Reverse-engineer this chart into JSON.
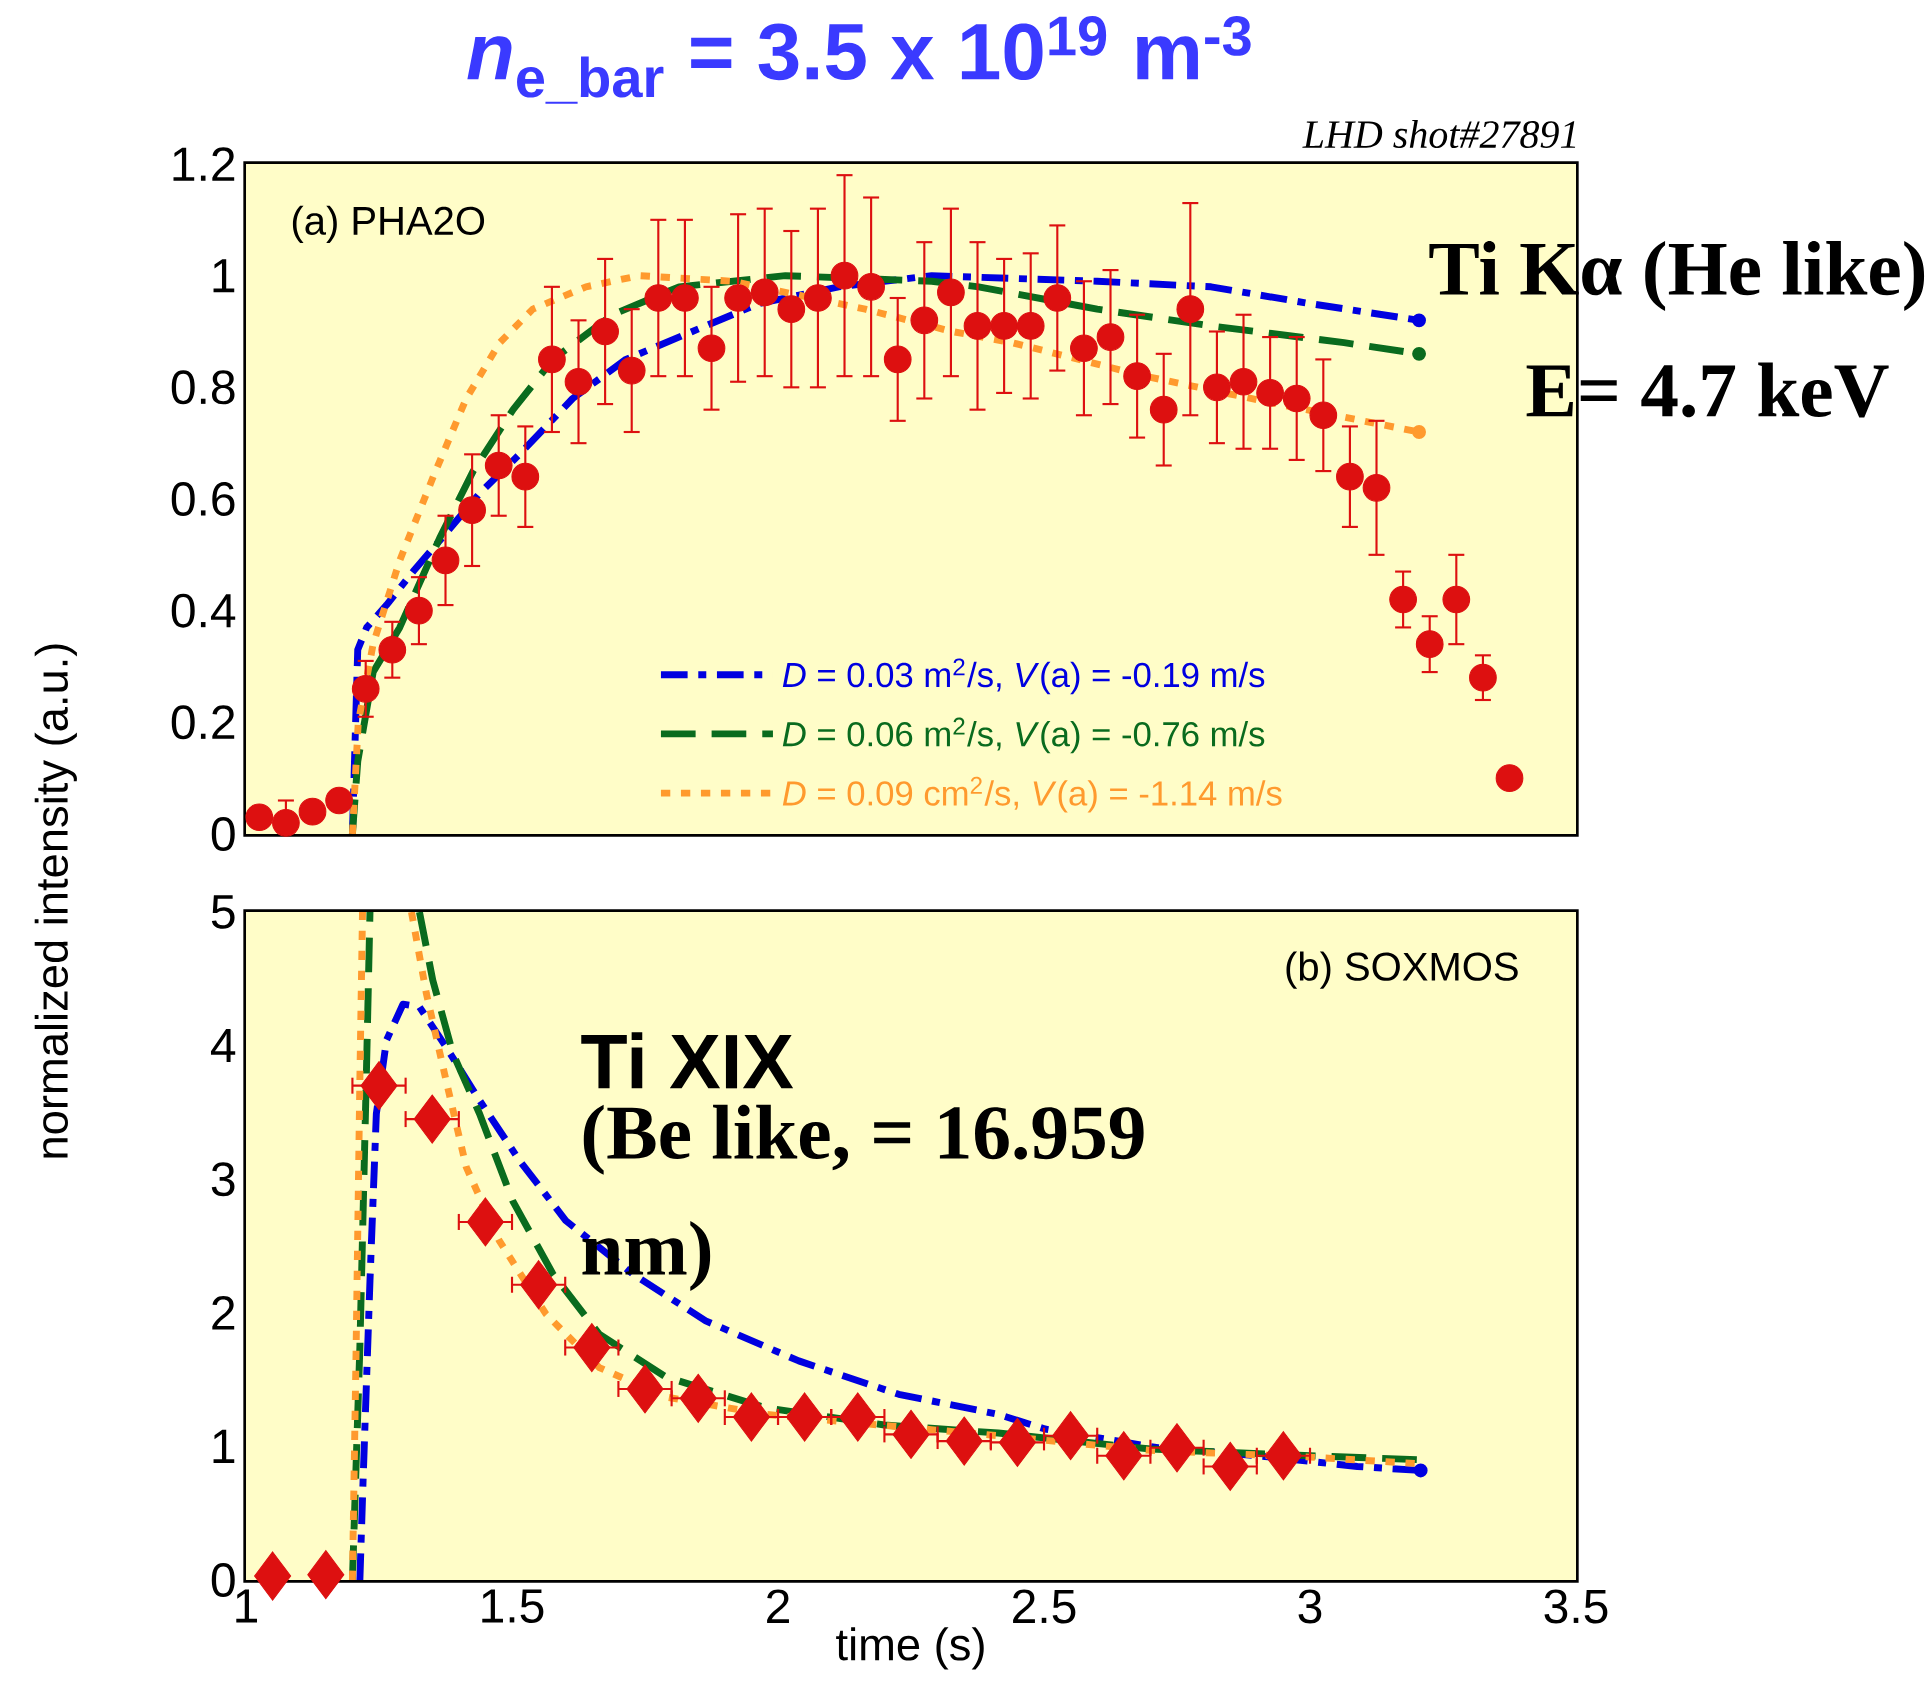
{
  "chart_data": [
    {
      "type": "line",
      "title": "*n*$_{e_bar}$ = 3.5 x 10$^{19}$ m$^{-3}$",
      "subtitle": "LHD shot#27891",
      "ylabel": "normalized intensity (a.u.)",
      "annotations": [
        "(a) PHA2O",
        "Ti Kα (He like)",
        "E= 4.7 keV"
      ],
      "xlim": [
        1,
        3.5
      ],
      "xticks": [
        1,
        1.5,
        2,
        2.5,
        3,
        3.5
      ],
      "ylim": [
        0,
        1.2
      ],
      "yticks": [
        0,
        0.2,
        0.4,
        0.6,
        0.8,
        1,
        1.2
      ],
      "tick_labels": "y",
      "legend": "bottom right",
      "series": [
        {
          "name": "*D* = 0.03 m$^{2}$/s, *V*(a) = -0.19 m/s",
          "line_style": "dashdot",
          "color": "#0000e0",
          "x": [
            1.2,
            1.21,
            1.227,
            1.264,
            1.314,
            1.377,
            1.439,
            1.514,
            1.614,
            1.714,
            1.839,
            1.964,
            2.114,
            2.289,
            2.6,
            2.814,
            3.0,
            3.205
          ],
          "values": [
            0,
            0.33,
            0.37,
            0.41,
            0.47,
            0.54,
            0.61,
            0.68,
            0.78,
            0.85,
            0.9,
            0.95,
            0.98,
            1.0,
            0.99,
            0.98,
            0.95,
            0.92
          ]
        },
        {
          "name": "*D* = 0.06 m$^{2}$/s, *V*(a) = -0.76 m/s",
          "line_style": "dashed",
          "color": "#0a6b1e",
          "x": [
            1.2,
            1.21,
            1.239,
            1.289,
            1.364,
            1.427,
            1.502,
            1.577,
            1.689,
            1.814,
            2.014,
            2.289,
            2.377,
            2.6,
            2.814,
            3.064,
            3.205
          ],
          "values": [
            0,
            0.13,
            0.29,
            0.37,
            0.53,
            0.65,
            0.76,
            0.85,
            0.93,
            0.98,
            1.0,
            0.99,
            0.98,
            0.94,
            0.91,
            0.88,
            0.86
          ]
        },
        {
          "name": "*D* = 0.09 cm$^{2}$/s, *V*(a) = -1.14 m/s",
          "line_style": "dotted",
          "color": "#ff9a2e",
          "x": [
            1.2,
            1.211,
            1.239,
            1.289,
            1.352,
            1.414,
            1.477,
            1.539,
            1.639,
            1.739,
            1.914,
            2.164,
            2.327,
            2.44,
            2.69,
            2.94,
            3.205
          ],
          "values": [
            0,
            0.2,
            0.34,
            0.49,
            0.64,
            0.78,
            0.88,
            0.94,
            0.98,
            1.0,
            0.99,
            0.94,
            0.9,
            0.88,
            0.82,
            0.77,
            0.72
          ]
        },
        {
          "type": "scatter",
          "marker": "circle",
          "color": "#dd1010",
          "x": [
            1.025,
            1.075,
            1.125,
            1.175,
            1.225,
            1.275,
            1.325,
            1.375,
            1.425,
            1.475,
            1.525,
            1.575,
            1.625,
            1.675,
            1.725,
            1.775,
            1.825,
            1.875,
            1.925,
            1.975,
            2.025,
            2.075,
            2.125,
            2.175,
            2.225,
            2.275,
            2.325,
            2.375,
            2.425,
            2.475,
            2.525,
            2.575,
            2.625,
            2.675,
            2.725,
            2.775,
            2.825,
            2.875,
            2.925,
            2.975,
            3.025,
            3.075,
            3.125,
            3.175,
            3.225,
            3.275,
            3.325,
            3.375
          ],
          "values": [
            0.03,
            0.02,
            0.04,
            0.06,
            0.26,
            0.33,
            0.4,
            0.49,
            0.58,
            0.66,
            0.64,
            0.85,
            0.81,
            0.9,
            0.83,
            0.96,
            0.96,
            0.87,
            0.96,
            0.97,
            0.94,
            0.96,
            1.0,
            0.98,
            0.85,
            0.92,
            0.97,
            0.91,
            0.91,
            0.91,
            0.96,
            0.87,
            0.89,
            0.82,
            0.76,
            0.94,
            0.8,
            0.81,
            0.79,
            0.78,
            0.75,
            0.64,
            0.62,
            0.42,
            0.34,
            0.42,
            0.28,
            0.1
          ],
          "errors": [
            null,
            0.04,
            null,
            null,
            0.05,
            0.05,
            0.06,
            0.08,
            0.1,
            0.09,
            0.09,
            0.13,
            0.11,
            0.13,
            0.11,
            0.14,
            0.14,
            0.11,
            0.15,
            0.15,
            0.14,
            0.16,
            0.18,
            0.16,
            0.11,
            0.14,
            0.15,
            0.15,
            0.12,
            0.13,
            0.13,
            0.12,
            0.12,
            0.11,
            0.1,
            0.19,
            0.1,
            0.12,
            0.1,
            0.11,
            0.1,
            0.09,
            0.12,
            0.05,
            0.05,
            0.08,
            0.04,
            null
          ]
        }
      ]
    },
    {
      "type": "line",
      "xlabel": "time (s)",
      "annotations": [
        "(b) SOXMOS",
        "Ti XIX",
        "(Be like,      = 16.959",
        "nm)"
      ],
      "xlim": [
        1,
        3.5
      ],
      "xticks": [
        1,
        1.5,
        2,
        2.5,
        3,
        3.5
      ],
      "ylim": [
        0,
        5
      ],
      "yticks": [
        0,
        1,
        2,
        3,
        4,
        5
      ],
      "series": [
        {
          "line_style": "dashdot",
          "color": "#0000e0",
          "x": [
            1.214,
            1.22,
            1.233,
            1.245,
            1.264,
            1.295,
            1.326,
            1.376,
            1.439,
            1.514,
            1.601,
            1.727,
            1.864,
            2.039,
            2.227,
            2.414,
            2.502,
            2.714,
            2.902,
            3.089,
            3.208
          ],
          "values": [
            0,
            0.74,
            2.24,
            3.49,
            4.04,
            4.31,
            4.29,
            3.99,
            3.59,
            3.14,
            2.69,
            2.29,
            1.94,
            1.64,
            1.39,
            1.24,
            1.13,
            0.99,
            0.93,
            0.85,
            0.82
          ]
        },
        {
          "line_style": "dashed",
          "color": "#0a6b1e",
          "x": [
            1.2,
            1.214,
            1.226,
            1.233,
            1.28,
            1.326,
            1.351,
            1.389,
            1.439,
            1.501,
            1.577,
            1.664,
            1.789,
            1.976,
            2.2,
            2.414,
            2.7,
            3.0,
            3.208
          ],
          "values": [
            0,
            1.74,
            3.74,
            5,
            null,
            5,
            4.49,
            3.94,
            3.49,
            2.84,
            2.29,
            1.84,
            1.52,
            1.29,
            1.16,
            1.1,
            0.98,
            0.93,
            0.9
          ]
        },
        {
          "line_style": "dotted",
          "color": "#ff9a2e",
          "x": [
            1.2,
            1.207,
            1.214,
            1.219,
            1.26,
            1.311,
            1.339,
            1.376,
            1.414,
            1.476,
            1.564,
            1.664,
            1.789,
            1.976,
            2.164,
            2.414,
            2.7,
            3.0,
            3.208
          ],
          "values": [
            0,
            1.74,
            3.74,
            5,
            null,
            5,
            4.39,
            3.74,
            3.09,
            2.54,
            1.99,
            1.59,
            1.37,
            1.24,
            1.17,
            1.08,
            0.97,
            0.92,
            0.87
          ]
        },
        {
          "type": "scatter",
          "marker": "diamond",
          "color": "#dd1010",
          "x": [
            1.05,
            1.15,
            1.25,
            1.35,
            1.45,
            1.55,
            1.65,
            1.75,
            1.85,
            1.95,
            2.05,
            2.15,
            2.25,
            2.35,
            2.45,
            2.55,
            2.65,
            2.75,
            2.85,
            2.95
          ],
          "values": [
            0.03,
            0.04,
            3.7,
            3.45,
            2.68,
            2.21,
            1.74,
            1.43,
            1.36,
            1.22,
            1.22,
            1.22,
            1.09,
            1.04,
            1.03,
            1.08,
            0.93,
            0.99,
            0.85,
            0.93
          ],
          "xerrors": [
            null,
            null,
            0.05,
            0.05,
            0.05,
            0.05,
            0.05,
            0.05,
            0.05,
            0.05,
            0.05,
            0.05,
            0.05,
            0.05,
            0.05,
            0.05,
            0.05,
            0.05,
            0.05,
            0.05
          ]
        }
      ]
    }
  ]
}
